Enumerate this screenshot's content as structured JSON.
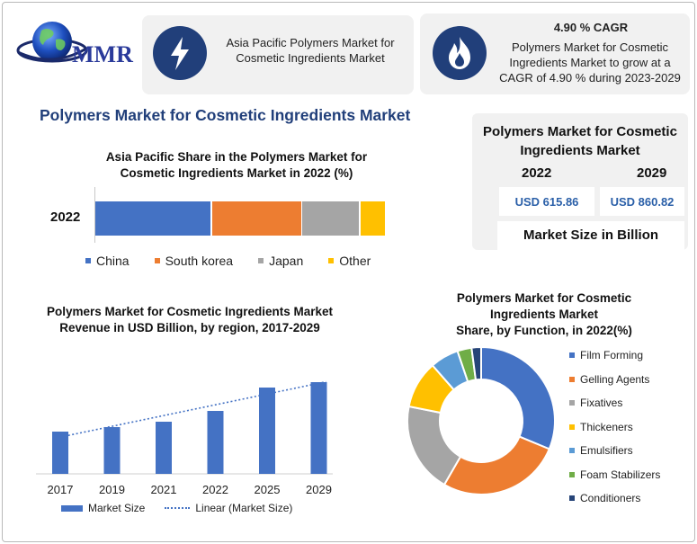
{
  "logo": {
    "text": "MMR"
  },
  "header": {
    "box1_text": "Asia Pacific Polymers Market for Cosmetic Ingredients Market",
    "box1_icon": "lightning-bolt-icon",
    "box2_title": "4.90 % CAGR",
    "box2_text": "Polymers Market for Cosmetic Ingredients Market to grow at a CAGR of 4.90 % during 2023-2029",
    "box2_icon": "flame-icon",
    "icon_bg": "#213f7a"
  },
  "main_title": "Polymers Market for Cosmetic Ingredients Market",
  "stats": {
    "title": "Polymers Market for Cosmetic Ingredients Market",
    "year1": "2022",
    "year2": "2029",
    "value1": "USD 615.86",
    "value2": "USD 860.82",
    "footer": "Market Size in Billion"
  },
  "chart_data": [
    {
      "type": "bar",
      "orientation": "horizontal-stacked",
      "title": "Asia Pacific Share in the Polymers Market for Cosmetic Ingredients Market in 2022 (%)",
      "categories": [
        "2022"
      ],
      "series": [
        {
          "name": "China",
          "values": [
            40
          ],
          "color": "#4472c4"
        },
        {
          "name": "South korea",
          "values": [
            31
          ],
          "color": "#ed7d31"
        },
        {
          "name": "Japan",
          "values": [
            20
          ],
          "color": "#a5a5a5"
        },
        {
          "name": "Other",
          "values": [
            9
          ],
          "color": "#ffc000"
        }
      ],
      "legend": "bottom"
    },
    {
      "type": "bar",
      "title": "Polymers Market for Cosmetic Ingredients Market Revenue in USD Billion, by region, 2017-2029",
      "categories": [
        "2017",
        "2019",
        "2021",
        "2022",
        "2025",
        "2029"
      ],
      "series": [
        {
          "name": "Market Size",
          "values": [
            47,
            52,
            58,
            70,
            96,
            102
          ],
          "color": "#4472c4"
        },
        {
          "name": "Linear (Market Size)",
          "type": "trendline",
          "color": "#4472c4"
        }
      ],
      "ylim": [
        0,
        110
      ],
      "grid": false,
      "legend": "bottom"
    },
    {
      "type": "pie",
      "style": "donut",
      "title_lines": [
        "Polymers Market for Cosmetic",
        "Ingredients Market",
        "Share, by Function, in 2022(%)"
      ],
      "labels": [
        "Film Forming",
        "Gelling Agents",
        "Fixatives",
        "Thickeners",
        "Emulsifiers",
        "Foam Stabilizers",
        "Conditioners"
      ],
      "values": [
        30,
        26,
        19,
        10,
        6,
        3,
        2
      ],
      "colors": [
        "#4472c4",
        "#ed7d31",
        "#a5a5a5",
        "#ffc000",
        "#5b9bd5",
        "#70ad47",
        "#264478"
      ],
      "legend": "right"
    }
  ]
}
